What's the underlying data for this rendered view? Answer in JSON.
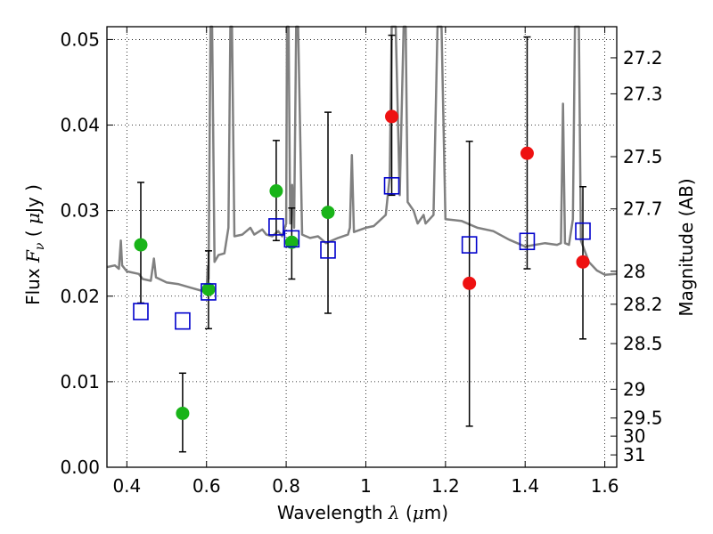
{
  "chart_data": {
    "type": "scatter",
    "xlabel_text": "Wavelength",
    "xlabel_symbol": "λ",
    "xlabel_unit_open": " (",
    "xlabel_unit_mu": "μ",
    "xlabel_unit_rest": "m)",
    "ylabel_text": "Flux",
    "ylabel_symbol": "F",
    "ylabel_sub": "ν",
    "ylabel_unit_open": "  ( ",
    "ylabel_unit_mu": "μ",
    "ylabel_unit_rest": "Jy )",
    "y2label": "Magnitude (AB)",
    "xlim": [
      0.35,
      1.63
    ],
    "ylim": [
      0.0,
      0.0515
    ],
    "grid": true,
    "xticks": [
      0.4,
      0.6,
      0.8,
      1.0,
      1.2,
      1.4,
      1.6
    ],
    "xtick_labels": [
      "0.4",
      "0.6",
      "0.8",
      "1",
      "1.2",
      "1.4",
      "1.6"
    ],
    "yticks": [
      0.0,
      0.01,
      0.02,
      0.03,
      0.04,
      0.05
    ],
    "ytick_labels": [
      "0.00",
      "0.01",
      "0.02",
      "0.03",
      "0.04",
      "0.05"
    ],
    "mag_ticks": [
      "27.2",
      "27.3",
      "27.5",
      "27.7",
      "28",
      "28.2",
      "28.5",
      "29",
      "29.5",
      "30",
      "31"
    ],
    "colors": {
      "spectrum": "#808080",
      "green": "#19b419",
      "red": "#ee1111",
      "model": "#0000cc",
      "errorbar": "#000000"
    },
    "spectrum": [
      [
        0.35,
        0.0234
      ],
      [
        0.37,
        0.0236
      ],
      [
        0.38,
        0.0232
      ],
      [
        0.385,
        0.0265
      ],
      [
        0.388,
        0.0236
      ],
      [
        0.4,
        0.0229
      ],
      [
        0.43,
        0.0226
      ],
      [
        0.44,
        0.022
      ],
      [
        0.46,
        0.0218
      ],
      [
        0.468,
        0.0244
      ],
      [
        0.473,
        0.0222
      ],
      [
        0.5,
        0.0216
      ],
      [
        0.53,
        0.0214
      ],
      [
        0.56,
        0.021
      ],
      [
        0.59,
        0.0206
      ],
      [
        0.6,
        0.0205
      ],
      [
        0.603,
        0.0235
      ],
      [
        0.605,
        0.022
      ],
      [
        0.61,
        0.0515
      ],
      [
        0.614,
        0.0515
      ],
      [
        0.62,
        0.024
      ],
      [
        0.63,
        0.0248
      ],
      [
        0.645,
        0.025
      ],
      [
        0.655,
        0.028
      ],
      [
        0.66,
        0.0515
      ],
      [
        0.664,
        0.0515
      ],
      [
        0.67,
        0.027
      ],
      [
        0.69,
        0.0272
      ],
      [
        0.71,
        0.028
      ],
      [
        0.72,
        0.0272
      ],
      [
        0.74,
        0.0278
      ],
      [
        0.75,
        0.0272
      ],
      [
        0.765,
        0.027
      ],
      [
        0.78,
        0.0276
      ],
      [
        0.79,
        0.027
      ],
      [
        0.8,
        0.0285
      ],
      [
        0.802,
        0.0515
      ],
      [
        0.806,
        0.0515
      ],
      [
        0.81,
        0.0285
      ],
      [
        0.815,
        0.033
      ],
      [
        0.82,
        0.028
      ],
      [
        0.825,
        0.0515
      ],
      [
        0.83,
        0.0515
      ],
      [
        0.84,
        0.0272
      ],
      [
        0.86,
        0.0268
      ],
      [
        0.88,
        0.027
      ],
      [
        0.9,
        0.0262
      ],
      [
        0.93,
        0.0268
      ],
      [
        0.955,
        0.0272
      ],
      [
        0.96,
        0.028
      ],
      [
        0.965,
        0.0365
      ],
      [
        0.97,
        0.0275
      ],
      [
        1.0,
        0.028
      ],
      [
        1.02,
        0.0282
      ],
      [
        1.05,
        0.0295
      ],
      [
        1.06,
        0.034
      ],
      [
        1.065,
        0.0515
      ],
      [
        1.075,
        0.0515
      ],
      [
        1.085,
        0.0318
      ],
      [
        1.095,
        0.0515
      ],
      [
        1.1,
        0.0515
      ],
      [
        1.105,
        0.031
      ],
      [
        1.12,
        0.03
      ],
      [
        1.13,
        0.0285
      ],
      [
        1.145,
        0.0295
      ],
      [
        1.15,
        0.0285
      ],
      [
        1.16,
        0.029
      ],
      [
        1.17,
        0.0295
      ],
      [
        1.18,
        0.0515
      ],
      [
        1.19,
        0.0515
      ],
      [
        1.2,
        0.029
      ],
      [
        1.24,
        0.0288
      ],
      [
        1.28,
        0.028
      ],
      [
        1.32,
        0.0276
      ],
      [
        1.36,
        0.0266
      ],
      [
        1.4,
        0.0258
      ],
      [
        1.45,
        0.0262
      ],
      [
        1.48,
        0.026
      ],
      [
        1.49,
        0.0262
      ],
      [
        1.495,
        0.0425
      ],
      [
        1.5,
        0.0262
      ],
      [
        1.51,
        0.026
      ],
      [
        1.52,
        0.029
      ],
      [
        1.525,
        0.0515
      ],
      [
        1.535,
        0.0515
      ],
      [
        1.54,
        0.0265
      ],
      [
        1.56,
        0.024
      ],
      [
        1.58,
        0.023
      ],
      [
        1.6,
        0.0225
      ],
      [
        1.63,
        0.0226
      ]
    ],
    "series": [
      {
        "name": "green-photometry",
        "color": "green",
        "points": [
          {
            "x": 0.435,
            "y": 0.026,
            "err_low": 0.0192,
            "err_high": 0.0333
          },
          {
            "x": 0.54,
            "y": 0.0063,
            "err_low": 0.0018,
            "err_high": 0.011
          },
          {
            "x": 0.605,
            "y": 0.0208,
            "err_low": 0.0162,
            "err_high": 0.0253
          },
          {
            "x": 0.775,
            "y": 0.0323,
            "err_low": 0.0265,
            "err_high": 0.0382
          },
          {
            "x": 0.814,
            "y": 0.0263,
            "err_low": 0.022,
            "err_high": 0.0303
          },
          {
            "x": 0.905,
            "y": 0.0298,
            "err_low": 0.018,
            "err_high": 0.0415
          }
        ]
      },
      {
        "name": "red-photometry",
        "color": "red",
        "points": [
          {
            "x": 1.065,
            "y": 0.041,
            "err_low": 0.0318,
            "err_high": 0.0505
          },
          {
            "x": 1.26,
            "y": 0.0215,
            "err_low": 0.0048,
            "err_high": 0.0381
          },
          {
            "x": 1.405,
            "y": 0.0367,
            "err_low": 0.0232,
            "err_high": 0.0503
          },
          {
            "x": 1.545,
            "y": 0.024,
            "err_low": 0.015,
            "err_high": 0.0328
          }
        ]
      },
      {
        "name": "model-points",
        "color": "model",
        "points": [
          {
            "x": 0.435,
            "y": 0.0182
          },
          {
            "x": 0.54,
            "y": 0.0171
          },
          {
            "x": 0.605,
            "y": 0.0205
          },
          {
            "x": 0.775,
            "y": 0.0281
          },
          {
            "x": 0.814,
            "y": 0.0267
          },
          {
            "x": 0.905,
            "y": 0.0254
          },
          {
            "x": 1.065,
            "y": 0.0329
          },
          {
            "x": 1.26,
            "y": 0.026
          },
          {
            "x": 1.405,
            "y": 0.0264
          },
          {
            "x": 1.545,
            "y": 0.0276
          }
        ]
      }
    ]
  }
}
